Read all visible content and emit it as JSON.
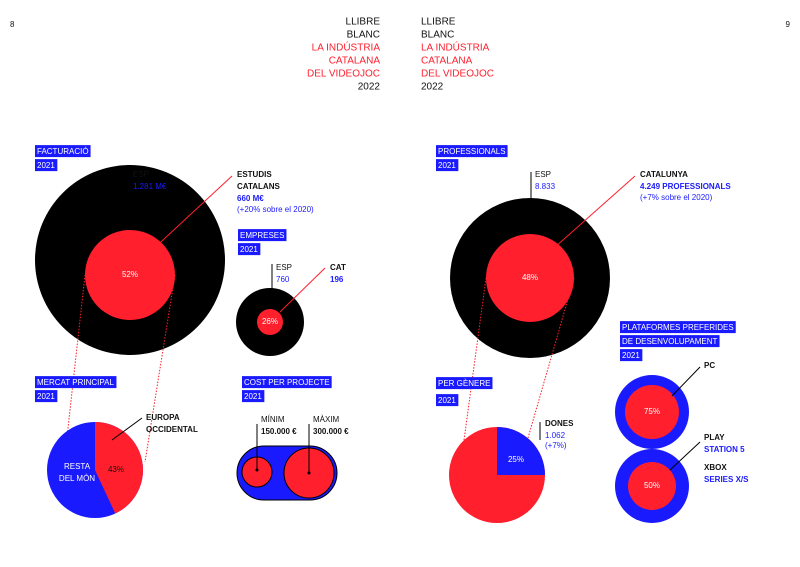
{
  "page_numbers": {
    "left": "8",
    "right": "9"
  },
  "header": {
    "left": [
      "LLIBRE",
      "BLANC",
      "LA INDÚSTRIA",
      "CATALANA",
      "DEL VIDEOJOC",
      "2022"
    ],
    "right": [
      "LLIBRE",
      "BLANC",
      "LA INDÚSTRIA",
      "CATALANA",
      "DEL VIDEOJOC",
      "2022"
    ]
  },
  "facturacio": {
    "title": "FACTURACIÓ",
    "year": "2021",
    "share": "52%",
    "esp_label": "ESP",
    "esp_value": "1.281 M€",
    "cat_label": [
      "ESTUDIS",
      "CATALANS"
    ],
    "cat_value": "660 M€",
    "cat_change": "(+20% sobre el 2020)"
  },
  "empreses": {
    "title": "EMPRESES",
    "year": "2021",
    "share": "26%",
    "esp_label": "ESP",
    "esp_value": "760",
    "cat_label": "CAT",
    "cat_value": "196"
  },
  "mercat": {
    "title": "MERCAT PRINCIPAL",
    "year": "2021",
    "rest_label": [
      "RESTA",
      "DEL MÓN"
    ],
    "share": "43%",
    "main_label": [
      "EUROPA",
      "OCCIDENTAL"
    ]
  },
  "cost": {
    "title": "COST PER PROJECTE",
    "year": "2021",
    "min_label": "MÍNIM",
    "min_value": "150.000 €",
    "max_label": "MÀXIM",
    "max_value": "300.000 €"
  },
  "professionals": {
    "title": "PROFESSIONALS",
    "year": "2021",
    "share": "48%",
    "esp_label": "ESP",
    "esp_value": "8.833",
    "cat_label": "CATALUNYA",
    "cat_value": "4.249 PROFESSIONALS",
    "cat_change": "(+7% sobre el 2020)"
  },
  "genere": {
    "title": "PER GÈNERE",
    "year": "2021",
    "share": "25%",
    "label": "DONES",
    "value": "1.062",
    "change": "(+7%)"
  },
  "plataformes": {
    "title": [
      "PLATAFORMES PREFERIDES",
      "DE DESENVOLUPAMENT"
    ],
    "year": "2021",
    "pc_share": "75%",
    "pc_label": "PC",
    "ps_share": "50%",
    "ps_label": [
      "PLAY",
      "STATION 5"
    ],
    "xbox_label": [
      "XBOX",
      "SERIES X/S"
    ]
  }
}
